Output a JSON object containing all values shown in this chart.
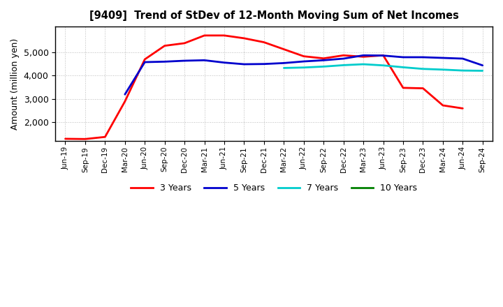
{
  "title": "[9409]  Trend of StDev of 12-Month Moving Sum of Net Incomes",
  "ylabel": "Amount (million yen)",
  "x_labels": [
    "Jun-19",
    "Sep-19",
    "Dec-19",
    "Mar-20",
    "Jun-20",
    "Sep-20",
    "Dec-20",
    "Mar-21",
    "Jun-21",
    "Sep-21",
    "Dec-21",
    "Mar-22",
    "Jun-22",
    "Sep-22",
    "Dec-22",
    "Mar-23",
    "Jun-23",
    "Sep-23",
    "Dec-23",
    "Mar-24",
    "Jun-24",
    "Sep-24"
  ],
  "series": {
    "3 Years": {
      "color": "#FF0000",
      "data_x": [
        0,
        1,
        2,
        3,
        4,
        5,
        6,
        7,
        8,
        9,
        10,
        11,
        12,
        13,
        14,
        15,
        16,
        17,
        18,
        19,
        20
      ],
      "data_y": [
        1300,
        1290,
        1380,
        2900,
        4700,
        5280,
        5390,
        5720,
        5720,
        5600,
        5430,
        5130,
        4830,
        4740,
        4870,
        4810,
        4870,
        3480,
        3460,
        2730,
        2600
      ]
    },
    "5 Years": {
      "color": "#0000CD",
      "data_x": [
        3,
        4,
        5,
        6,
        7,
        8,
        9,
        10,
        11,
        12,
        13,
        14,
        15,
        16,
        17,
        18,
        19,
        20,
        21
      ],
      "data_y": [
        3200,
        4580,
        4600,
        4640,
        4660,
        4560,
        4490,
        4500,
        4540,
        4610,
        4660,
        4730,
        4870,
        4860,
        4790,
        4790,
        4760,
        4730,
        4440
      ]
    },
    "7 Years": {
      "color": "#00CCCC",
      "data_x": [
        11,
        12,
        13,
        14,
        15,
        16,
        17,
        18,
        19,
        20,
        21
      ],
      "data_y": [
        4330,
        4350,
        4390,
        4450,
        4490,
        4440,
        4360,
        4290,
        4260,
        4220,
        4210
      ]
    },
    "10 Years": {
      "color": "#008000",
      "data_x": [],
      "data_y": []
    }
  },
  "ylim": [
    1200,
    6100
  ],
  "yticks": [
    2000,
    3000,
    4000,
    5000
  ],
  "grid_color": "#BBBBBB",
  "bg_color": "#FFFFFF",
  "plot_bg_color": "#FFFFFF",
  "legend_labels": [
    "3 Years",
    "5 Years",
    "7 Years",
    "10 Years"
  ],
  "legend_colors": [
    "#FF0000",
    "#0000CD",
    "#00CCCC",
    "#008000"
  ]
}
